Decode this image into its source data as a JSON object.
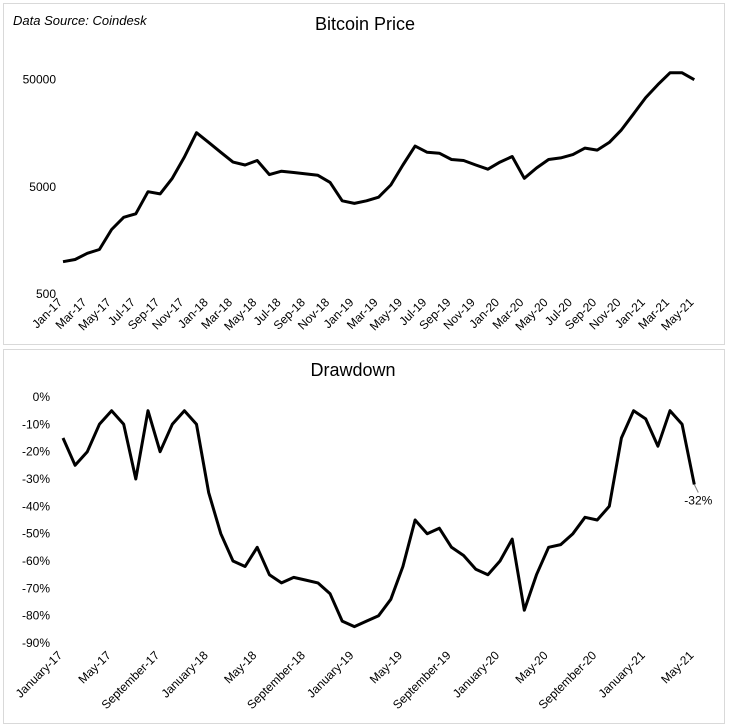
{
  "chart_data": [
    {
      "type": "line",
      "title": "Bitcoin Price",
      "source_note": "Data Source: Coindesk",
      "yscale": "log",
      "ylim": [
        500,
        70000
      ],
      "y_ticks": [
        "500",
        "5000",
        "50000"
      ],
      "x_ticks": [
        "Jan-17",
        "Mar-17",
        "May-17",
        "Jul-17",
        "Sep-17",
        "Nov-17",
        "Jan-18",
        "Mar-18",
        "May-18",
        "Jul-18",
        "Sep-18",
        "Nov-18",
        "Jan-19",
        "Mar-19",
        "May-19",
        "Jul-19",
        "Sep-19",
        "Nov-19",
        "Jan-20",
        "Mar-20",
        "May-20",
        "Jul-20",
        "Sep-20",
        "Nov-20",
        "Jan-21",
        "Mar-21",
        "May-21"
      ],
      "grid": false,
      "line_color": "#000000",
      "series": [
        {
          "x": [
            "2017-01",
            "2017-02",
            "2017-03",
            "2017-04",
            "2017-05",
            "2017-06",
            "2017-07",
            "2017-08",
            "2017-09",
            "2017-10",
            "2017-11",
            "2017-12",
            "2018-01",
            "2018-02",
            "2018-03",
            "2018-04",
            "2018-05",
            "2018-06",
            "2018-07",
            "2018-08",
            "2018-09",
            "2018-10",
            "2018-11",
            "2018-12",
            "2019-01",
            "2019-02",
            "2019-03",
            "2019-04",
            "2019-05",
            "2019-06",
            "2019-07",
            "2019-08",
            "2019-09",
            "2019-10",
            "2019-11",
            "2019-12",
            "2020-01",
            "2020-02",
            "2020-03",
            "2020-04",
            "2020-05",
            "2020-06",
            "2020-07",
            "2020-08",
            "2020-09",
            "2020-10",
            "2020-11",
            "2020-12",
            "2021-01",
            "2021-02",
            "2021-03",
            "2021-04",
            "2021-05"
          ],
          "values": [
            1000,
            1050,
            1200,
            1300,
            2000,
            2600,
            2800,
            4500,
            4300,
            6000,
            9500,
            16000,
            13000,
            10500,
            8500,
            8000,
            8800,
            6500,
            7000,
            6800,
            6600,
            6400,
            5500,
            3700,
            3500,
            3700,
            4000,
            5200,
            8000,
            12000,
            10500,
            10300,
            9000,
            8800,
            8000,
            7300,
            8500,
            9600,
            6000,
            7500,
            9000,
            9300,
            10000,
            11500,
            11000,
            13000,
            17000,
            24000,
            34000,
            45000,
            58000,
            58000,
            50000
          ]
        }
      ]
    },
    {
      "type": "line",
      "title": "Drawdown",
      "ylim": [
        -90,
        0
      ],
      "y_ticks": [
        "0%",
        "-10%",
        "-20%",
        "-30%",
        "-40%",
        "-50%",
        "-60%",
        "-70%",
        "-80%",
        "-90%"
      ],
      "x_ticks": [
        "January-17",
        "May-17",
        "September-17",
        "January-18",
        "May-18",
        "September-18",
        "January-19",
        "May-19",
        "September-19",
        "January-20",
        "May-20",
        "September-20",
        "January-21",
        "May-21"
      ],
      "annotation": "-32%",
      "grid": false,
      "line_color": "#000000",
      "series": [
        {
          "x": [
            "2017-01",
            "2017-02",
            "2017-03",
            "2017-04",
            "2017-05",
            "2017-06",
            "2017-07",
            "2017-08",
            "2017-09",
            "2017-10",
            "2017-11",
            "2017-12",
            "2018-01",
            "2018-02",
            "2018-03",
            "2018-04",
            "2018-05",
            "2018-06",
            "2018-07",
            "2018-08",
            "2018-09",
            "2018-10",
            "2018-11",
            "2018-12",
            "2019-01",
            "2019-02",
            "2019-03",
            "2019-04",
            "2019-05",
            "2019-06",
            "2019-07",
            "2019-08",
            "2019-09",
            "2019-10",
            "2019-11",
            "2019-12",
            "2020-01",
            "2020-02",
            "2020-03",
            "2020-04",
            "2020-05",
            "2020-06",
            "2020-07",
            "2020-08",
            "2020-09",
            "2020-10",
            "2020-11",
            "2020-12",
            "2021-01",
            "2021-02",
            "2021-03",
            "2021-04",
            "2021-05"
          ],
          "values": [
            -15,
            -25,
            -20,
            -10,
            -5,
            -10,
            -30,
            -5,
            -20,
            -10,
            -5,
            -10,
            -35,
            -50,
            -60,
            -62,
            -55,
            -65,
            -68,
            -66,
            -67,
            -68,
            -72,
            -82,
            -84,
            -82,
            -80,
            -74,
            -62,
            -45,
            -50,
            -48,
            -55,
            -58,
            -63,
            -65,
            -60,
            -52,
            -78,
            -65,
            -55,
            -54,
            -50,
            -44,
            -45,
            -40,
            -15,
            -5,
            -8,
            -18,
            -5,
            -10,
            -32
          ]
        }
      ]
    }
  ]
}
